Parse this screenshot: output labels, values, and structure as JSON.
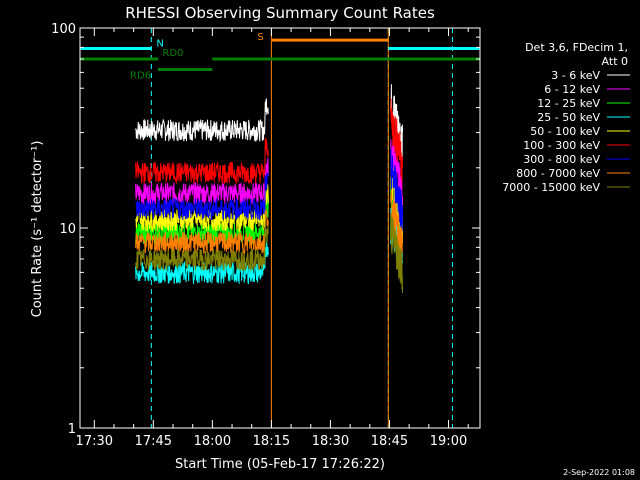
{
  "chart_data": {
    "type": "line",
    "title": "RHESSI Observing Summary Count Rates",
    "xlabel": "Start Time (05-Feb-17 17:26:22)",
    "ylabel": "Count Rate (s⁻¹ detector⁻¹)",
    "yscale": "log",
    "ylim": [
      1,
      100
    ],
    "xlim_minutes": [
      1046.37,
      1148.0
    ],
    "x_ticks": [
      {
        "label": "17:30",
        "minute": 1050
      },
      {
        "label": "17:45",
        "minute": 1065
      },
      {
        "label": "18:00",
        "minute": 1080
      },
      {
        "label": "18:15",
        "minute": 1095
      },
      {
        "label": "18:30",
        "minute": 1110
      },
      {
        "label": "18:45",
        "minute": 1125
      },
      {
        "label": "19:00",
        "minute": 1140
      }
    ],
    "y_ticks": [
      {
        "label": "1",
        "value": 1
      },
      {
        "label": "10",
        "value": 10
      },
      {
        "label": "100",
        "value": 100
      }
    ],
    "legend_header": [
      "Det 3,6, FDecim 1,",
      "Att 0"
    ],
    "series": [
      {
        "name": "3 - 6 keV",
        "color": "#ffffff",
        "level1": 31,
        "level2": 44
      },
      {
        "name": "6 - 12 keV",
        "color": "#ff00ff",
        "level1": 15,
        "level2": 24
      },
      {
        "name": "12 - 25 keV",
        "color": "#00ff00",
        "level1": 9.5,
        "level2": 15
      },
      {
        "name": "25 - 50 keV",
        "color": "#00ffff",
        "level1": 6,
        "level2": 11
      },
      {
        "name": "50 - 100 keV",
        "color": "#ffff00",
        "level1": 11,
        "level2": 18
      },
      {
        "name": "100 - 300 keV",
        "color": "#ff0000",
        "level1": 19,
        "level2": 36
      },
      {
        "name": "300 - 800 keV",
        "color": "#0000ff",
        "level1": 12.5,
        "level2": 20
      },
      {
        "name": "800 - 7000 keV",
        "color": "#ff8000",
        "level1": 8.5,
        "level2": 13
      },
      {
        "name": "7000 - 15000 keV",
        "color": "#808000",
        "level1": 7,
        "level2": 10
      }
    ],
    "segments_minutes": [
      [
        1060.5,
        1094.2
      ],
      [
        1125.3,
        1128.3
      ]
    ],
    "annotations": {
      "night": {
        "label": "N",
        "color": "#00ffff",
        "intervals": [
          [
            1046.37,
            1064.5
          ],
          [
            1124.7,
            1148.0
          ]
        ],
        "level": 79
      },
      "saa": {
        "label": "S",
        "color": "#ff8000",
        "intervals": [
          [
            1095.0,
            1124.7
          ]
        ],
        "level": 87
      },
      "rd0": {
        "label": "RD0",
        "color": "#008000",
        "intervals": [
          [
            1046.37,
            1066.2
          ],
          [
            1080.0,
            1148.0
          ]
        ],
        "level": 70
      },
      "rd6": {
        "label": "RD6",
        "color": "#008000",
        "intervals": [
          [
            1066.2,
            1080.0
          ]
        ],
        "level": 62
      }
    },
    "vertical_lines": [
      {
        "minute": 1064.5,
        "color": "#00ffff",
        "style": "dashed"
      },
      {
        "minute": 1095.0,
        "color": "#ff8000",
        "style": "solid"
      },
      {
        "minute": 1124.7,
        "color": "#00ffff",
        "style": "dashed"
      },
      {
        "minute": 1124.7,
        "color": "#ff8000",
        "style": "solid"
      },
      {
        "minute": 1141.0,
        "color": "#00ffff",
        "style": "dashed"
      },
      {
        "minute": 1046.37,
        "color": "#00ffff",
        "style": "solid"
      }
    ]
  },
  "footer": {
    "date_stamp": "2-Sep-2022 01:08"
  }
}
